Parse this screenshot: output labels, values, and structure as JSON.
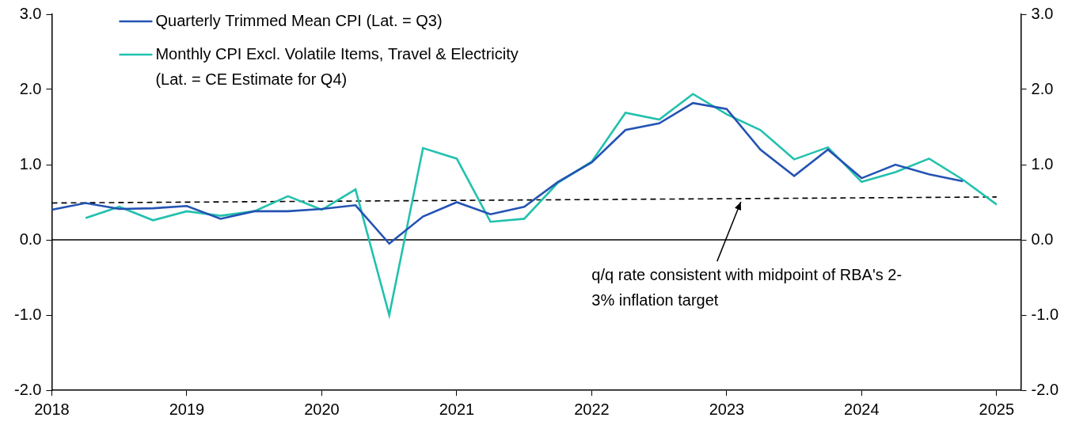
{
  "chart_data": {
    "type": "line",
    "legend": "top left",
    "grid": false,
    "xlim": [
      2018,
      2025.18
    ],
    "xticks": [
      2018,
      2019,
      2020,
      2021,
      2022,
      2023,
      2024,
      2025
    ],
    "ylim": [
      -2,
      3
    ],
    "yticks": [
      {
        "value": -2,
        "label": "-2.0"
      },
      {
        "value": -1,
        "label": "-1.0"
      },
      {
        "value": 0,
        "label": "0.0"
      },
      {
        "value": 1,
        "label": "1.0"
      },
      {
        "value": 2,
        "label": "2.0"
      },
      {
        "value": 3,
        "label": "3.0"
      }
    ],
    "y2lim": [
      -2,
      3
    ],
    "y2ticks": [
      {
        "value": -2,
        "label": "-2.0"
      },
      {
        "value": -1,
        "label": "-1.0"
      },
      {
        "value": 0,
        "label": "0.0"
      },
      {
        "value": 1,
        "label": "1.0"
      },
      {
        "value": 2,
        "label": "2.0"
      },
      {
        "value": 3,
        "label": "3.0"
      }
    ],
    "series": [
      {
        "name": "Quarterly Trimmed Mean CPI (Lat. = Q3)",
        "color": "#2453b3",
        "marker": "none",
        "line_style": "solid",
        "x": [
          2018,
          2018.25,
          2018.5,
          2018.75,
          2019,
          2019.25,
          2019.5,
          2019.75,
          2020,
          2020.25,
          2020.5,
          2020.75,
          2021,
          2021.25,
          2021.5,
          2021.75,
          2022,
          2022.25,
          2022.5,
          2022.75,
          2023,
          2023.25,
          2023.5,
          2023.75,
          2024,
          2024.25,
          2024.5,
          2024.75
        ],
        "values": [
          0.4,
          0.49,
          0.41,
          0.42,
          0.45,
          0.28,
          0.38,
          0.38,
          0.41,
          0.46,
          -0.05,
          0.31,
          0.5,
          0.34,
          0.44,
          0.77,
          1.03,
          1.46,
          1.55,
          1.82,
          1.74,
          1.2,
          0.85,
          1.2,
          0.82,
          1.0,
          0.87,
          0.78
        ]
      },
      {
        "name": "Monthly CPI Excl. Volatile Items, Travel & Electricity (Lat. = CE Estimate for Q4)",
        "color": "#22c1ae",
        "marker": "none",
        "line_style": "solid",
        "x": [
          2018.25,
          2018.5,
          2018.75,
          2019,
          2019.25,
          2019.5,
          2019.75,
          2020,
          2020.25,
          2020.5,
          2020.75,
          2021,
          2021.25,
          2021.5,
          2021.75,
          2022,
          2022.25,
          2022.5,
          2022.75,
          2023,
          2023.25,
          2023.5,
          2023.75,
          2024,
          2024.25,
          2024.5,
          2024.75,
          2025
        ],
        "values": [
          0.29,
          0.44,
          0.26,
          0.38,
          0.32,
          0.38,
          0.58,
          0.4,
          0.67,
          -1.0,
          1.22,
          1.08,
          0.24,
          0.28,
          0.76,
          1.04,
          1.69,
          1.6,
          1.94,
          1.67,
          1.46,
          1.07,
          1.23,
          0.77,
          0.9,
          1.08,
          0.8,
          0.47
        ]
      },
      {
        "color": "#000000",
        "marker": "none",
        "line_style": "dashed",
        "x": [
          2018,
          2025
        ],
        "values": [
          0.49,
          0.57
        ]
      }
    ],
    "annotations": [
      {
        "text": [
          "q/q rate consistent with midpoint of RBA's 2-",
          "3% inflation target"
        ]
      }
    ]
  }
}
